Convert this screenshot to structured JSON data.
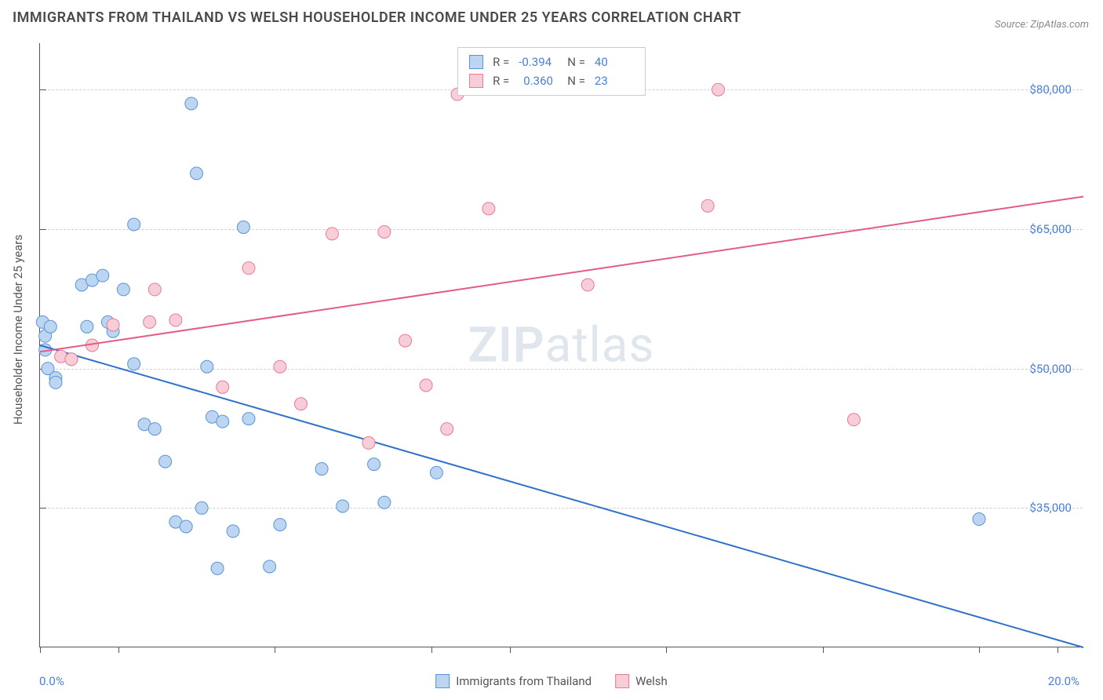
{
  "title": "IMMIGRANTS FROM THAILAND VS WELSH HOUSEHOLDER INCOME UNDER 25 YEARS CORRELATION CHART",
  "source": "Source: ZipAtlas.com",
  "y_axis_title": "Householder Income Under 25 years",
  "watermark_bold": "ZIP",
  "watermark_rest": "atlas",
  "chart": {
    "type": "scatter",
    "xlim": [
      0,
      20
    ],
    "ylim": [
      20000,
      85000
    ],
    "x_min_label": "0.0%",
    "x_max_label": "20.0%",
    "y_ticks": [
      35000,
      50000,
      65000,
      80000
    ],
    "y_tick_labels": [
      "$35,000",
      "$50,000",
      "$65,000",
      "$80,000"
    ],
    "x_ticks": [
      0,
      1.5,
      4.5,
      7.5,
      9,
      12,
      15,
      18,
      19.5
    ],
    "background_color": "#ffffff",
    "grid_color": "#d0d0d0",
    "series": [
      {
        "name": "Immigrants from Thailand",
        "color_fill": "#bcd6f2",
        "color_stroke": "#5b93d6",
        "marker_size": 8,
        "R": "-0.394",
        "N": "40",
        "trend": {
          "x1": 0,
          "y1": 52500,
          "x2": 20,
          "y2": 20000,
          "color": "#2f72c9",
          "width": 2
        },
        "points": [
          [
            0.05,
            55000
          ],
          [
            0.1,
            52000
          ],
          [
            0.1,
            53500
          ],
          [
            0.15,
            50000
          ],
          [
            0.2,
            54500
          ],
          [
            0.3,
            49000
          ],
          [
            0.3,
            48500
          ],
          [
            0.6,
            51000
          ],
          [
            0.8,
            59000
          ],
          [
            0.9,
            54500
          ],
          [
            1.0,
            59500
          ],
          [
            1.2,
            60000
          ],
          [
            1.3,
            55000
          ],
          [
            1.4,
            54000
          ],
          [
            1.6,
            58500
          ],
          [
            1.8,
            65500
          ],
          [
            1.8,
            50500
          ],
          [
            2.0,
            44000
          ],
          [
            2.2,
            43500
          ],
          [
            2.4,
            40000
          ],
          [
            2.6,
            33500
          ],
          [
            2.8,
            33000
          ],
          [
            2.9,
            78500
          ],
          [
            3.0,
            71000
          ],
          [
            3.1,
            35000
          ],
          [
            3.2,
            50200
          ],
          [
            3.3,
            44800
          ],
          [
            3.4,
            28500
          ],
          [
            3.5,
            44300
          ],
          [
            3.7,
            32500
          ],
          [
            3.9,
            65200
          ],
          [
            4.0,
            44600
          ],
          [
            4.4,
            28700
          ],
          [
            4.6,
            33200
          ],
          [
            5.4,
            39200
          ],
          [
            5.8,
            35200
          ],
          [
            6.4,
            39700
          ],
          [
            6.6,
            35600
          ],
          [
            7.6,
            38800
          ],
          [
            18.0,
            33800
          ]
        ]
      },
      {
        "name": "Welsh",
        "color_fill": "#f7cdd7",
        "color_stroke": "#e87a9a",
        "marker_size": 8,
        "R": "0.360",
        "N": "23",
        "trend": {
          "x1": 0,
          "y1": 51800,
          "x2": 20,
          "y2": 68500,
          "color": "#e45c86",
          "width": 2
        },
        "points": [
          [
            0.4,
            51300
          ],
          [
            0.6,
            51000
          ],
          [
            1.0,
            52500
          ],
          [
            1.4,
            54700
          ],
          [
            2.1,
            55000
          ],
          [
            2.2,
            58500
          ],
          [
            2.6,
            55200
          ],
          [
            3.5,
            48000
          ],
          [
            4.0,
            60800
          ],
          [
            4.6,
            50200
          ],
          [
            5.0,
            46200
          ],
          [
            5.6,
            64500
          ],
          [
            6.3,
            42000
          ],
          [
            6.6,
            64700
          ],
          [
            7.0,
            53000
          ],
          [
            7.4,
            48200
          ],
          [
            7.8,
            43500
          ],
          [
            8.0,
            79500
          ],
          [
            8.6,
            67200
          ],
          [
            10.5,
            59000
          ],
          [
            12.8,
            67500
          ],
          [
            13.0,
            80000
          ],
          [
            15.6,
            44500
          ]
        ]
      }
    ]
  },
  "legend": {
    "series1_label": "Immigrants from Thailand",
    "series2_label": "Welsh",
    "r_label": "R =",
    "n_label": "N ="
  }
}
